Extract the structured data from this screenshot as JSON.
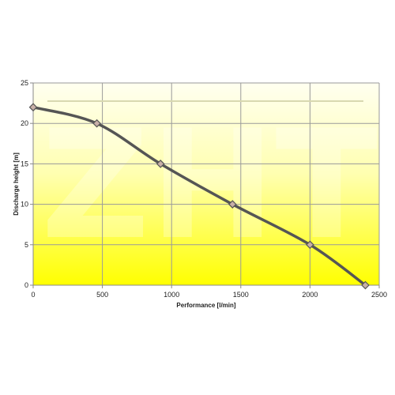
{
  "chart_data": {
    "type": "line",
    "title": "",
    "xlabel": "Performance [l/min]",
    "ylabel": "Discharge height [m]",
    "xlim": [
      0,
      2500
    ],
    "ylim": [
      0,
      25
    ],
    "x_ticks": [
      "0",
      "500",
      "1000",
      "1500",
      "2000",
      "2500"
    ],
    "y_ticks": [
      "0",
      "5",
      "10",
      "15",
      "20",
      "25"
    ],
    "grid": true,
    "legend": "none",
    "watermark": "ZHT",
    "colors": {
      "background_top": "#fffff0",
      "background_bottom": "#ffff00",
      "line": "#555555",
      "marker": "#c8b0a8",
      "grid": "#9a9a9a",
      "reference_line": "#d8d8b0"
    },
    "series": [
      {
        "x": [
          0,
          460,
          920,
          1440,
          2000,
          2400
        ],
        "y": [
          22,
          20,
          15,
          10,
          5,
          0
        ]
      }
    ]
  }
}
